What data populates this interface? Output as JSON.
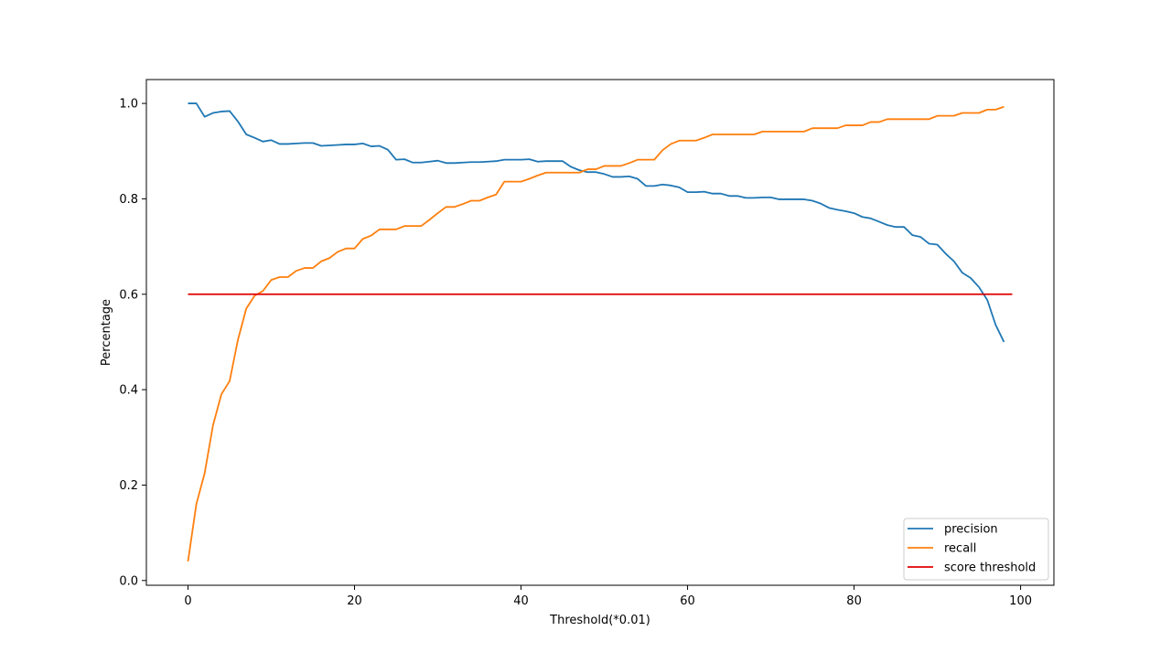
{
  "chart_data": {
    "type": "line",
    "xlabel": "Threshold(*0.01)",
    "ylabel": "Percentage",
    "xlim": [
      -5,
      104
    ],
    "ylim": [
      -0.01,
      1.05
    ],
    "grid": false,
    "legend_position": "lower-right",
    "x_ticks": [
      0,
      20,
      40,
      60,
      80,
      100
    ],
    "x_tick_labels": [
      "0",
      "20",
      "40",
      "60",
      "80",
      "100"
    ],
    "y_ticks": [
      0.0,
      0.2,
      0.4,
      0.6,
      0.8,
      1.0
    ],
    "y_tick_labels": [
      "0.0",
      "0.2",
      "0.4",
      "0.6",
      "0.8",
      "1.0"
    ],
    "series": [
      {
        "name": "precision",
        "color": "#1f77b4",
        "x": [
          0,
          1,
          2,
          3,
          4,
          5,
          6,
          7,
          8,
          9,
          10,
          11,
          12,
          13,
          14,
          15,
          16,
          17,
          18,
          19,
          20,
          21,
          22,
          23,
          24,
          25,
          26,
          27,
          28,
          29,
          30,
          31,
          32,
          33,
          34,
          35,
          36,
          37,
          38,
          39,
          40,
          41,
          42,
          43,
          44,
          45,
          46,
          47,
          48,
          49,
          50,
          51,
          52,
          53,
          54,
          55,
          56,
          57,
          58,
          59,
          60,
          61,
          62,
          63,
          64,
          65,
          66,
          67,
          68,
          69,
          70,
          71,
          72,
          73,
          74,
          75,
          76,
          77,
          78,
          79,
          80,
          81,
          82,
          83,
          84,
          85,
          86,
          87,
          88,
          89,
          90,
          91,
          92,
          93,
          94,
          95,
          96,
          97,
          98
        ],
        "values": [
          1.0,
          1.0,
          0.972,
          0.98,
          0.983,
          0.984,
          0.962,
          0.935,
          0.928,
          0.92,
          0.923,
          0.915,
          0.915,
          0.916,
          0.917,
          0.917,
          0.911,
          0.912,
          0.913,
          0.914,
          0.914,
          0.916,
          0.91,
          0.911,
          0.903,
          0.882,
          0.883,
          0.876,
          0.876,
          0.878,
          0.88,
          0.875,
          0.875,
          0.876,
          0.877,
          0.877,
          0.878,
          0.879,
          0.882,
          0.882,
          0.882,
          0.883,
          0.878,
          0.879,
          0.879,
          0.879,
          0.867,
          0.86,
          0.856,
          0.856,
          0.852,
          0.846,
          0.846,
          0.847,
          0.842,
          0.827,
          0.827,
          0.83,
          0.828,
          0.824,
          0.814,
          0.814,
          0.815,
          0.811,
          0.811,
          0.806,
          0.806,
          0.802,
          0.802,
          0.803,
          0.803,
          0.799,
          0.799,
          0.799,
          0.799,
          0.796,
          0.79,
          0.781,
          0.777,
          0.774,
          0.77,
          0.762,
          0.759,
          0.752,
          0.745,
          0.741,
          0.741,
          0.724,
          0.72,
          0.706,
          0.704,
          0.685,
          0.669,
          0.645,
          0.634,
          0.615,
          0.588,
          0.536,
          0.5
        ]
      },
      {
        "name": "recall",
        "color": "#ff7f0e",
        "x": [
          0,
          1,
          2,
          3,
          4,
          5,
          6,
          7,
          8,
          9,
          10,
          11,
          12,
          13,
          14,
          15,
          16,
          17,
          18,
          19,
          20,
          21,
          22,
          23,
          24,
          25,
          26,
          27,
          28,
          29,
          30,
          31,
          32,
          33,
          34,
          35,
          36,
          37,
          38,
          39,
          40,
          41,
          42,
          43,
          44,
          45,
          46,
          47,
          48,
          49,
          50,
          51,
          52,
          53,
          54,
          55,
          56,
          57,
          58,
          59,
          60,
          61,
          62,
          63,
          64,
          65,
          66,
          67,
          68,
          69,
          70,
          71,
          72,
          73,
          74,
          75,
          76,
          77,
          78,
          79,
          80,
          81,
          82,
          83,
          84,
          85,
          86,
          87,
          88,
          89,
          90,
          91,
          92,
          93,
          94,
          95,
          96,
          97,
          98
        ],
        "values": [
          0.04,
          0.16,
          0.225,
          0.325,
          0.39,
          0.418,
          0.505,
          0.57,
          0.597,
          0.607,
          0.63,
          0.636,
          0.636,
          0.649,
          0.655,
          0.655,
          0.669,
          0.676,
          0.689,
          0.696,
          0.696,
          0.716,
          0.723,
          0.736,
          0.736,
          0.736,
          0.743,
          0.743,
          0.743,
          0.756,
          0.77,
          0.783,
          0.783,
          0.789,
          0.796,
          0.796,
          0.803,
          0.809,
          0.836,
          0.836,
          0.836,
          0.842,
          0.849,
          0.855,
          0.855,
          0.855,
          0.855,
          0.855,
          0.862,
          0.862,
          0.869,
          0.869,
          0.869,
          0.875,
          0.882,
          0.882,
          0.882,
          0.902,
          0.915,
          0.922,
          0.922,
          0.922,
          0.928,
          0.935,
          0.935,
          0.935,
          0.935,
          0.935,
          0.935,
          0.941,
          0.941,
          0.941,
          0.941,
          0.941,
          0.941,
          0.948,
          0.948,
          0.948,
          0.948,
          0.954,
          0.954,
          0.954,
          0.961,
          0.961,
          0.967,
          0.967,
          0.967,
          0.967,
          0.967,
          0.967,
          0.974,
          0.974,
          0.974,
          0.98,
          0.98,
          0.98,
          0.987,
          0.987,
          0.993
        ]
      },
      {
        "name": "score threshold",
        "color": "#e00000",
        "x": [
          0,
          99
        ],
        "values": [
          0.6,
          0.6
        ]
      }
    ]
  }
}
